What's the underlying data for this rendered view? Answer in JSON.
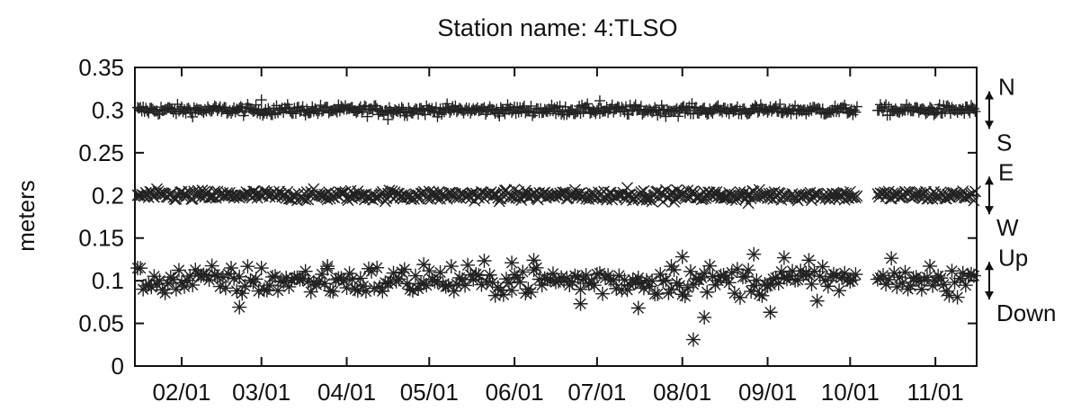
{
  "chart_data": {
    "type": "scatter",
    "title": "Station name: 4:TLSO",
    "ylabel": "meters",
    "xlabel": "",
    "ylim": [
      0,
      0.35
    ],
    "yticks": [
      "0",
      "0.05",
      "0.1",
      "0.15",
      "0.2",
      "0.25",
      "0.3",
      "0.35"
    ],
    "xlim": [
      "2000-01-15",
      "2000-11-16"
    ],
    "xticks": [
      "02/01",
      "03/01",
      "04/01",
      "05/01",
      "06/01",
      "07/01",
      "08/01",
      "09/01",
      "10/01",
      "11/01"
    ],
    "grid": false,
    "data_gap": [
      "2000-10-04",
      "2000-10-10"
    ],
    "series": [
      {
        "marker": "plus",
        "baseline": 0.3,
        "scatter": 0.003,
        "outliers": [
          {
            "x": "2000-03-01",
            "y": 0.312
          },
          {
            "x": "2000-07-02",
            "y": 0.311
          },
          {
            "x": "2000-04-16",
            "y": 0.289
          }
        ]
      },
      {
        "marker": "cross",
        "baseline": 0.2,
        "scatter": 0.003,
        "outliers": [
          {
            "x": "2000-07-12",
            "y": 0.209
          },
          {
            "x": "2000-08-25",
            "y": 0.191
          }
        ]
      },
      {
        "marker": "star",
        "baseline": 0.1,
        "scatter": 0.009,
        "outliers": [
          {
            "x": "2000-02-22",
            "y": 0.069
          },
          {
            "x": "2000-03-25",
            "y": 0.117
          },
          {
            "x": "2000-04-29",
            "y": 0.119
          },
          {
            "x": "2000-05-31",
            "y": 0.121
          },
          {
            "x": "2000-06-08",
            "y": 0.124
          },
          {
            "x": "2000-06-25",
            "y": 0.073
          },
          {
            "x": "2000-07-16",
            "y": 0.068
          },
          {
            "x": "2000-07-28",
            "y": 0.117
          },
          {
            "x": "2000-08-01",
            "y": 0.128
          },
          {
            "x": "2000-08-05",
            "y": 0.031
          },
          {
            "x": "2000-08-09",
            "y": 0.057
          },
          {
            "x": "2000-08-27",
            "y": 0.131
          },
          {
            "x": "2000-09-02",
            "y": 0.063
          },
          {
            "x": "2000-09-07",
            "y": 0.127
          },
          {
            "x": "2000-09-16",
            "y": 0.124
          }
        ]
      }
    ],
    "right_labels": [
      {
        "top": "N",
        "bottom": "S"
      },
      {
        "top": "E",
        "bottom": "W"
      },
      {
        "top": "Up",
        "bottom": "Down"
      }
    ]
  }
}
